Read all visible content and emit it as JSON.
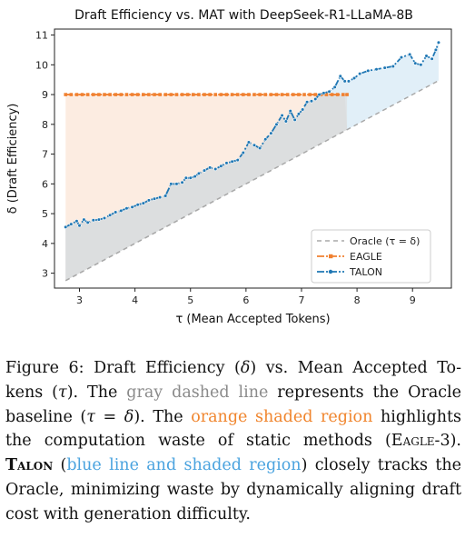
{
  "chart_data": {
    "type": "line",
    "title": "Draft Efficiency vs. MAT with DeepSeek-R1-LLaMA-8B",
    "xlabel": "τ (Mean Accepted Tokens)",
    "ylabel": "δ (Draft Efficiency)",
    "xlim": [
      2.55,
      9.7
    ],
    "ylim": [
      2.5,
      11.2
    ],
    "xticks": [
      3,
      4,
      5,
      6,
      7,
      8,
      9
    ],
    "yticks": [
      3,
      4,
      5,
      6,
      7,
      8,
      9,
      10,
      11
    ],
    "grid": false,
    "legend_position": "lower-right",
    "series": [
      {
        "name": "Oracle (τ = δ)",
        "style": "dashed",
        "color": "#a8a8a8",
        "x": [
          2.75,
          9.45
        ],
        "y": [
          2.75,
          9.45
        ]
      },
      {
        "name": "EAGLE",
        "style": "dash-dot-square",
        "color": "#f08030",
        "x": [
          2.75,
          2.85,
          2.95,
          3.05,
          3.15,
          3.25,
          3.35,
          3.45,
          3.55,
          3.65,
          3.75,
          3.85,
          3.95,
          4.05,
          4.15,
          4.25,
          4.35,
          4.45,
          4.55,
          4.65,
          4.75,
          4.85,
          4.95,
          5.05,
          5.15,
          5.25,
          5.35,
          5.45,
          5.55,
          5.65,
          5.75,
          5.85,
          5.95,
          6.05,
          6.15,
          6.25,
          6.35,
          6.45,
          6.55,
          6.65,
          6.75,
          6.85,
          6.95,
          7.05,
          7.15,
          7.25,
          7.35,
          7.45,
          7.55,
          7.65,
          7.75,
          7.82
        ],
        "y": [
          9.0,
          9.0,
          9.0,
          9.0,
          9.0,
          9.0,
          9.0,
          9.0,
          9.0,
          9.0,
          9.0,
          9.0,
          9.0,
          9.0,
          9.0,
          9.0,
          9.0,
          9.0,
          9.0,
          9.0,
          9.0,
          9.0,
          9.0,
          9.0,
          9.0,
          9.0,
          9.0,
          9.0,
          9.0,
          9.0,
          9.0,
          9.0,
          9.0,
          9.0,
          9.0,
          9.0,
          9.0,
          9.0,
          9.0,
          9.0,
          9.0,
          9.0,
          9.0,
          9.0,
          9.0,
          9.0,
          9.0,
          9.0,
          9.0,
          9.0,
          9.0,
          9.0
        ]
      },
      {
        "name": "TALON",
        "style": "dash-dot-circle",
        "color": "#1f77b4",
        "x": [
          2.75,
          2.85,
          2.95,
          3.0,
          3.08,
          3.15,
          3.25,
          3.35,
          3.45,
          3.55,
          3.65,
          3.75,
          3.85,
          3.95,
          4.05,
          4.15,
          4.25,
          4.35,
          4.45,
          4.55,
          4.65,
          4.75,
          4.85,
          4.92,
          5.0,
          5.08,
          5.15,
          5.25,
          5.35,
          5.45,
          5.55,
          5.65,
          5.75,
          5.85,
          5.95,
          6.05,
          6.15,
          6.25,
          6.35,
          6.45,
          6.55,
          6.65,
          6.72,
          6.8,
          6.88,
          6.95,
          7.02,
          7.1,
          7.18,
          7.25,
          7.32,
          7.4,
          7.5,
          7.6,
          7.7,
          7.78,
          7.85,
          7.95,
          8.05,
          8.2,
          8.35,
          8.5,
          8.65,
          8.8,
          8.95,
          9.05,
          9.15,
          9.25,
          9.35,
          9.42,
          9.47
        ],
        "y": [
          4.55,
          4.65,
          4.75,
          4.6,
          4.8,
          4.7,
          4.78,
          4.8,
          4.85,
          4.95,
          5.05,
          5.1,
          5.18,
          5.22,
          5.3,
          5.35,
          5.45,
          5.5,
          5.55,
          5.6,
          6.0,
          6.0,
          6.05,
          6.2,
          6.2,
          6.25,
          6.35,
          6.45,
          6.55,
          6.5,
          6.6,
          6.7,
          6.75,
          6.8,
          7.05,
          7.4,
          7.3,
          7.2,
          7.5,
          7.7,
          8.0,
          8.3,
          8.1,
          8.45,
          8.15,
          8.35,
          8.5,
          8.75,
          8.78,
          8.85,
          9.0,
          9.05,
          9.1,
          9.25,
          9.62,
          9.45,
          9.45,
          9.55,
          9.7,
          9.8,
          9.85,
          9.9,
          9.95,
          10.25,
          10.35,
          10.05,
          10.0,
          10.3,
          10.2,
          10.5,
          10.75
        ]
      }
    ],
    "legend": [
      "Oracle (τ = δ)",
      "EAGLE",
      "TALON"
    ]
  },
  "caption": {
    "p1": "Figure 6: Draft Efficiency (",
    "delta1": "δ",
    "p2": ") vs. Mean Accepted To-kens (",
    "tau1": "τ",
    "p3": ").  The ",
    "gray_text": "gray dashed line",
    "p4": " represents the Oracle baseline (",
    "eq": "τ = δ",
    "p5": "). The ",
    "orange_text": "orange shaded region",
    "p6": " highlights the computation waste of static methods (",
    "eagle": "Eagle-3",
    "p7": ").",
    "talon": "Talon",
    "blue_text": "blue line and shaded region",
    "p8": ") closely tracks the Oracle, minimizing waste by dynamically aligning draft cost with generation difficulty."
  }
}
